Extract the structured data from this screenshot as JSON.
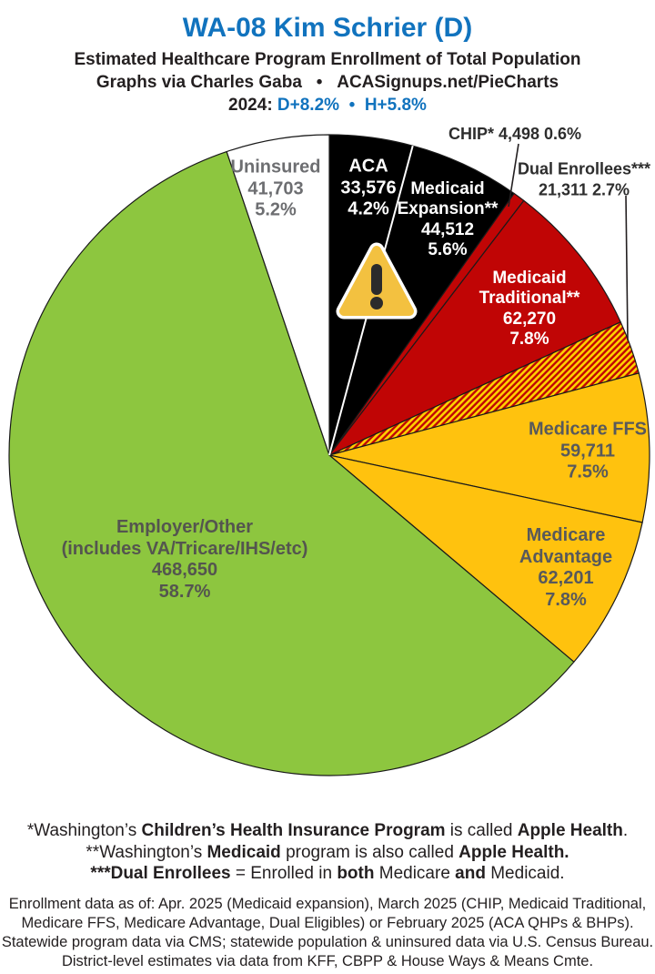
{
  "header": {
    "title": "WA-08 Kim Schrier (D)",
    "title_color": "#1173BE",
    "subtitle1": "Estimated Healthcare Program Enrollment of Total Population",
    "subtitle2": "Graphs via Charles Gaba   •   ACASignups.net/PieCharts",
    "line2024_segments": [
      {
        "t": "2024: ",
        "color": "#231F20"
      },
      {
        "t": "D+8.2%",
        "color": "#1173BE"
      },
      {
        "t": "  •  ",
        "color": "#1173BE"
      },
      {
        "t": "H+5.8%",
        "color": "#1173BE"
      }
    ]
  },
  "chart_data": {
    "type": "pie",
    "title": "WA-08 Kim Schrier (D)",
    "subtitle": "Estimated Healthcare Program Enrollment of Total Population",
    "start_angle": "12 o'clock, clockwise",
    "colors": {
      "black": "#000000",
      "red": "#C00505",
      "gold": "#FFC20E",
      "green": "#8DC63F",
      "white": "#FFFFFF",
      "hatch_base": "#C00505",
      "hatch_stripe": "#FFD200",
      "slice_outline": "#1A1A1A",
      "divider_white": "#FFFFFF"
    },
    "slices": [
      {
        "id": "aca",
        "name": "ACA",
        "value": 33576,
        "pct": 4.2,
        "color": "#000000",
        "text_color": "#FFFFFF",
        "label_lines": [
          "ACA",
          "33,576",
          "4.2%"
        ]
      },
      {
        "id": "medicaid-expansion",
        "name": "Medicaid Expansion**",
        "value": 44512,
        "pct": 5.6,
        "color": "#000000",
        "text_color": "#FFFFFF",
        "label_lines": [
          "Medicaid",
          "Expansion**",
          "44,512",
          "5.6%"
        ]
      },
      {
        "id": "chip",
        "name": "CHIP*",
        "value": 4498,
        "pct": 0.6,
        "color": "#C00505",
        "text_color": "#2D2D2D",
        "callout_lines": [
          "CHIP* 4,498 0.6%"
        ]
      },
      {
        "id": "medicaid-traditional",
        "name": "Medicaid Traditional**",
        "value": 62270,
        "pct": 7.8,
        "color": "#C00505",
        "text_color": "#FFFFFF",
        "label_lines": [
          "Medicaid",
          "Traditional**",
          "62,270",
          "7.8%"
        ]
      },
      {
        "id": "dual-enrollees",
        "name": "Dual Enrollees***",
        "value": 21311,
        "pct": 2.7,
        "color": "hatch",
        "text_color": "#2D2D2D",
        "callout_lines": [
          "Dual Enrollees***",
          "21,311 2.7%"
        ]
      },
      {
        "id": "medicare-ffs",
        "name": "Medicare FFS",
        "value": 59711,
        "pct": 7.5,
        "color": "#FFC20E",
        "text_color": "#58595B",
        "label_lines": [
          "Medicare FFS",
          "59,711",
          "7.5%"
        ]
      },
      {
        "id": "medicare-advantage",
        "name": "Medicare Advantage",
        "value": 62201,
        "pct": 7.8,
        "color": "#FFC20E",
        "text_color": "#58595B",
        "label_lines": [
          "Medicare",
          "Advantage",
          "62,201",
          "7.8%"
        ]
      },
      {
        "id": "employer-other",
        "name": "Employer/Other (includes VA/Tricare/IHS/etc)",
        "value": 468650,
        "pct": 58.7,
        "color": "#8DC63F",
        "text_color": "#54554F",
        "label_lines": [
          "Employer/Other",
          "(includes VA/Tricare/IHS/etc)",
          "468,650",
          "58.7%"
        ]
      },
      {
        "id": "uninsured",
        "name": "Uninsured",
        "value": 41703,
        "pct": 5.2,
        "color": "#FFFFFF",
        "text_color": "#6D6E71",
        "label_lines": [
          "Uninsured",
          "41,703",
          "5.2%"
        ]
      }
    ]
  },
  "footnotes": [
    [
      {
        "t": "*Washington’s ",
        "b": false
      },
      {
        "t": "Children’s Health Insurance Program",
        "b": true
      },
      {
        "t": " is called ",
        "b": false
      },
      {
        "t": "Apple Health",
        "b": true
      },
      {
        "t": ".",
        "b": false
      }
    ],
    [
      {
        "t": "**Washington’s ",
        "b": false
      },
      {
        "t": "Medicaid",
        "b": true
      },
      {
        "t": " program is also called ",
        "b": false
      },
      {
        "t": "Apple Health.",
        "b": true
      }
    ],
    [
      {
        "t": "***Dual Enrollees",
        "b": true
      },
      {
        "t": " = Enrolled in ",
        "b": false
      },
      {
        "t": "both",
        "b": true
      },
      {
        "t": " Medicare ",
        "b": false
      },
      {
        "t": "and",
        "b": true
      },
      {
        "t": " Medicaid.",
        "b": false
      }
    ]
  ],
  "fine_print": [
    "Enrollment data as of: Apr. 2025 (Medicaid expansion), March 2025 (CHIP, Medicaid Traditional,",
    "Medicare FFS, Medicare Advantage, Dual Eligibles) or February 2025 (ACA QHPs & BHPs).",
    "Statewide program data via CMS; statewide population & uninsured data via U.S. Census Bureau.",
    "District-level estimates via data from KFF, CBPP & House Ways & Means Cmte."
  ]
}
